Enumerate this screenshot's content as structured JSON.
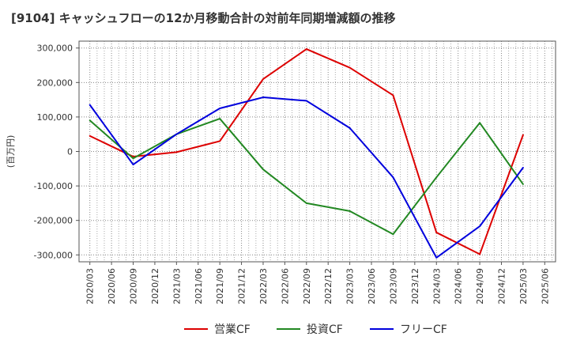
{
  "chart_data": {
    "type": "line",
    "title": "[9104]  キャッシュフローの12か月移動合計の対前年同期増減額の推移",
    "ylabel": "(百万円)",
    "xlabel": "",
    "ylim": [
      -320000,
      320000
    ],
    "yticks": [
      300000,
      200000,
      100000,
      0,
      -100000,
      -200000,
      -300000
    ],
    "ytick_labels": [
      "300,000",
      "200,000",
      "100,000",
      "0",
      "-100,000",
      "-200,000",
      "-300,000"
    ],
    "categories": [
      "2020/03",
      "2020/06",
      "2020/09",
      "2020/12",
      "2021/03",
      "2021/06",
      "2021/09",
      "2021/12",
      "2022/03",
      "2022/06",
      "2022/09",
      "2022/12",
      "2023/03",
      "2023/06",
      "2023/09",
      "2023/12",
      "2024/03",
      "2024/06",
      "2024/09",
      "2024/12",
      "2025/03",
      "2025/06"
    ],
    "grid": true,
    "legend_position": "bottom",
    "series": [
      {
        "name": "営業CF",
        "color": "#dd0000",
        "values": [
          45000,
          null,
          -15000,
          null,
          -2000,
          null,
          30000,
          null,
          210000,
          null,
          297000,
          null,
          243000,
          null,
          163000,
          null,
          -235000,
          null,
          -298000,
          null,
          48000,
          null
        ]
      },
      {
        "name": "投資CF",
        "color": "#228822",
        "values": [
          90000,
          null,
          -20000,
          null,
          50000,
          null,
          95000,
          null,
          -52000,
          null,
          -150000,
          null,
          -173000,
          null,
          -240000,
          null,
          -75000,
          null,
          83000,
          null,
          -95000,
          null
        ]
      },
      {
        "name": "フリーCF",
        "color": "#0000dd",
        "values": [
          135000,
          null,
          -38000,
          null,
          50000,
          null,
          125000,
          null,
          157000,
          null,
          147000,
          null,
          68000,
          null,
          -75000,
          null,
          -308000,
          null,
          -217000,
          null,
          -47000,
          null
        ]
      }
    ]
  }
}
